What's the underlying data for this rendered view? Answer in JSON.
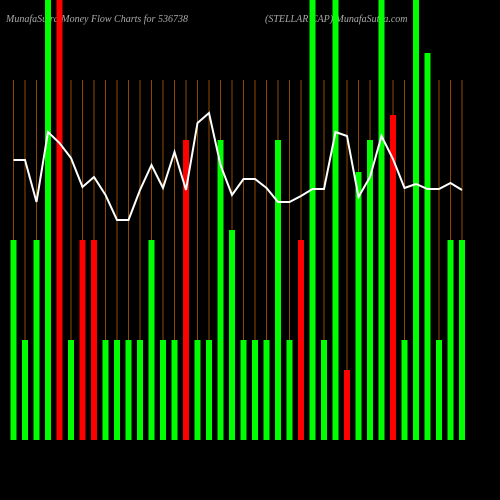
{
  "chart_data": {
    "type": "bar_line",
    "title": "MunafaSutra Money Flow Charts for 536738",
    "subtitle": "(STELLAR CAP) MunafaSutra.com",
    "categories": [
      null,
      null,
      null,
      null,
      null,
      null,
      null,
      null,
      null,
      null,
      null,
      null,
      null,
      null,
      null,
      null,
      null,
      null,
      null,
      null,
      null,
      null,
      null,
      null,
      null,
      null,
      null,
      null,
      null,
      null,
      null,
      null,
      null,
      null,
      null,
      null,
      null,
      null,
      null,
      null
    ],
    "bars": {
      "values": [
        200,
        100,
        200,
        440,
        440,
        100,
        200,
        200,
        100,
        100,
        100,
        100,
        200,
        100,
        100,
        300,
        100,
        100,
        300,
        210,
        100,
        100,
        100,
        300,
        100,
        200,
        440,
        100,
        440,
        70,
        268,
        300,
        440,
        325,
        100,
        440,
        387,
        100,
        200,
        200
      ],
      "colors": [
        "#00ff00",
        "#00ff00",
        "#00ff00",
        "#00ff00",
        "#ff0000",
        "#00ff00",
        "#ff0000",
        "#ff0000",
        "#00ff00",
        "#00ff00",
        "#00ff00",
        "#00ff00",
        "#00ff00",
        "#00ff00",
        "#00ff00",
        "#ff0000",
        "#00ff00",
        "#00ff00",
        "#00ff00",
        "#00ff00",
        "#00ff00",
        "#00ff00",
        "#00ff00",
        "#00ff00",
        "#00ff00",
        "#ff0000",
        "#00ff00",
        "#00ff00",
        "#00ff00",
        "#ff0000",
        "#00ff00",
        "#00ff00",
        "#00ff00",
        "#ff0000",
        "#00ff00",
        "#00ff00",
        "#00ff00",
        "#00ff00",
        "#00ff00",
        "#00ff00"
      ]
    },
    "line": {
      "color": "#ffffff",
      "values": [
        280,
        280,
        238,
        308,
        297,
        282,
        253,
        263,
        245,
        220,
        220,
        250,
        275,
        252,
        288,
        250,
        317,
        327,
        275,
        245,
        261,
        261,
        252,
        238,
        238,
        244,
        251,
        251,
        308,
        304,
        243,
        263,
        304,
        281,
        252,
        256,
        251,
        251,
        257,
        250
      ]
    },
    "gridline_color": "#8b4a00"
  }
}
